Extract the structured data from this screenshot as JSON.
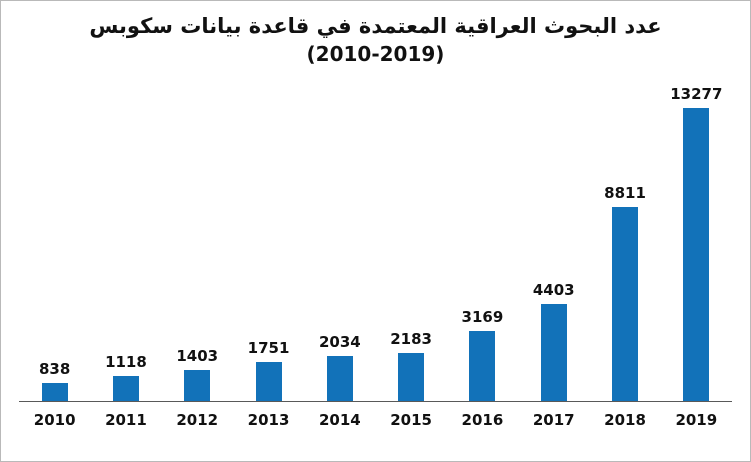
{
  "chart_data": {
    "type": "bar",
    "title": "عدد البحوث العراقية المعتمدة في قاعدة بيانات سكوبس",
    "subtitle": "(2010-2019)",
    "categories": [
      "2010",
      "2011",
      "2012",
      "2013",
      "2014",
      "2015",
      "2016",
      "2017",
      "2018",
      "2019"
    ],
    "values": [
      838,
      1118,
      1403,
      1751,
      2034,
      2183,
      3169,
      4403,
      8811,
      13277
    ],
    "value_labels_shown": true,
    "bar_color": "#1272b9",
    "text_color": "#111111",
    "ylim": [
      0,
      13277
    ],
    "grid": false,
    "legend": "none",
    "orientation": "vertical"
  }
}
